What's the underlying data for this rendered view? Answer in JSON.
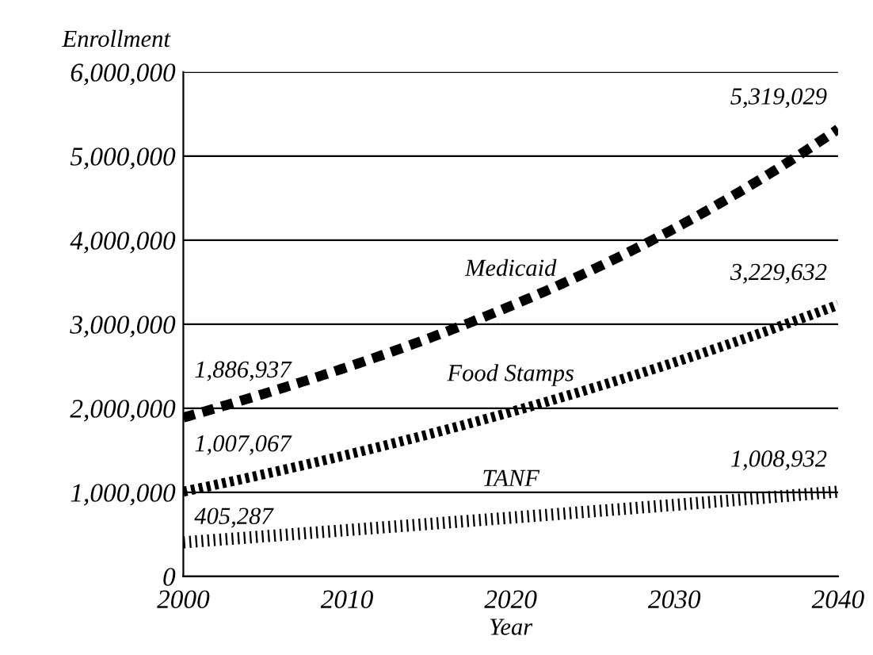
{
  "chart_data": {
    "type": "line",
    "xlabel": "Year",
    "ylabel": "Enrollment",
    "x": [
      2000,
      2010,
      2020,
      2030,
      2040
    ],
    "series": [
      {
        "name": "Medicaid",
        "color": "#000000",
        "line_style": "dashed",
        "values": [
          1886937,
          2500000,
          3200000,
          4150000,
          5319029
        ],
        "value_labels": [
          "1,886,937",
          null,
          null,
          null,
          "5,319,029"
        ]
      },
      {
        "name": "Food Stamps",
        "color": "#000000",
        "line_style": "dotted",
        "values": [
          1007067,
          1450000,
          1950000,
          2550000,
          3229632
        ],
        "value_labels": [
          "1,007,067",
          null,
          null,
          null,
          "3,229,632"
        ]
      },
      {
        "name": "TANF",
        "color": "#000000",
        "line_style": "dotted",
        "values": [
          405287,
          550000,
          700000,
          850000,
          1008932
        ],
        "value_labels": [
          "405,287",
          null,
          null,
          null,
          "1,008,932"
        ]
      }
    ],
    "xlim": [
      2000,
      2040
    ],
    "xticks": [
      2000,
      2010,
      2020,
      2030,
      2040
    ],
    "ylim": [
      0,
      6000000
    ],
    "yticks": [
      0,
      {
        "value": 1000000,
        "label": "1,000,000"
      },
      {
        "value": 2000000,
        "label": "2,000,000"
      },
      {
        "value": 3000000,
        "label": "3,000,000"
      },
      {
        "value": 4000000,
        "label": "4,000,000"
      },
      {
        "value": 5000000,
        "label": "5,000,000"
      },
      {
        "value": 6000000,
        "label": "6,000,000"
      }
    ],
    "grid": "y",
    "legend": false,
    "marker": "none"
  }
}
